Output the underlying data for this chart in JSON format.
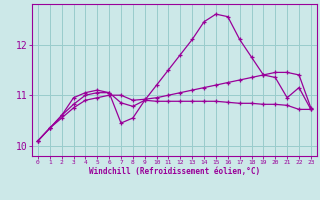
{
  "xlabel": "Windchill (Refroidissement éolien,°C)",
  "bg_color": "#cce8e8",
  "grid_color": "#99cccc",
  "line_color": "#990099",
  "x": [
    0,
    1,
    2,
    3,
    4,
    5,
    6,
    7,
    8,
    9,
    10,
    11,
    12,
    13,
    14,
    15,
    16,
    17,
    18,
    19,
    20,
    21,
    22,
    23
  ],
  "line1": [
    10.1,
    10.35,
    10.55,
    10.75,
    10.9,
    10.95,
    11.0,
    11.0,
    10.9,
    10.92,
    10.95,
    11.0,
    11.05,
    11.1,
    11.15,
    11.2,
    11.25,
    11.3,
    11.35,
    11.4,
    11.45,
    11.45,
    11.4,
    10.75
  ],
  "line2": [
    10.1,
    10.35,
    10.6,
    10.82,
    11.0,
    11.05,
    11.05,
    10.85,
    10.78,
    10.9,
    10.88,
    10.88,
    10.88,
    10.88,
    10.88,
    10.88,
    10.86,
    10.84,
    10.84,
    10.82,
    10.82,
    10.8,
    10.72,
    10.72
  ],
  "line3": [
    10.1,
    10.35,
    10.6,
    10.95,
    11.05,
    11.1,
    11.05,
    10.45,
    10.55,
    10.9,
    11.2,
    11.5,
    11.8,
    12.1,
    12.45,
    12.6,
    12.55,
    12.1,
    11.75,
    11.4,
    11.35,
    10.95,
    11.15,
    10.72
  ],
  "ylim": [
    9.8,
    12.8
  ],
  "yticks": [
    10,
    11,
    12
  ],
  "xlim": [
    -0.5,
    23.5
  ]
}
